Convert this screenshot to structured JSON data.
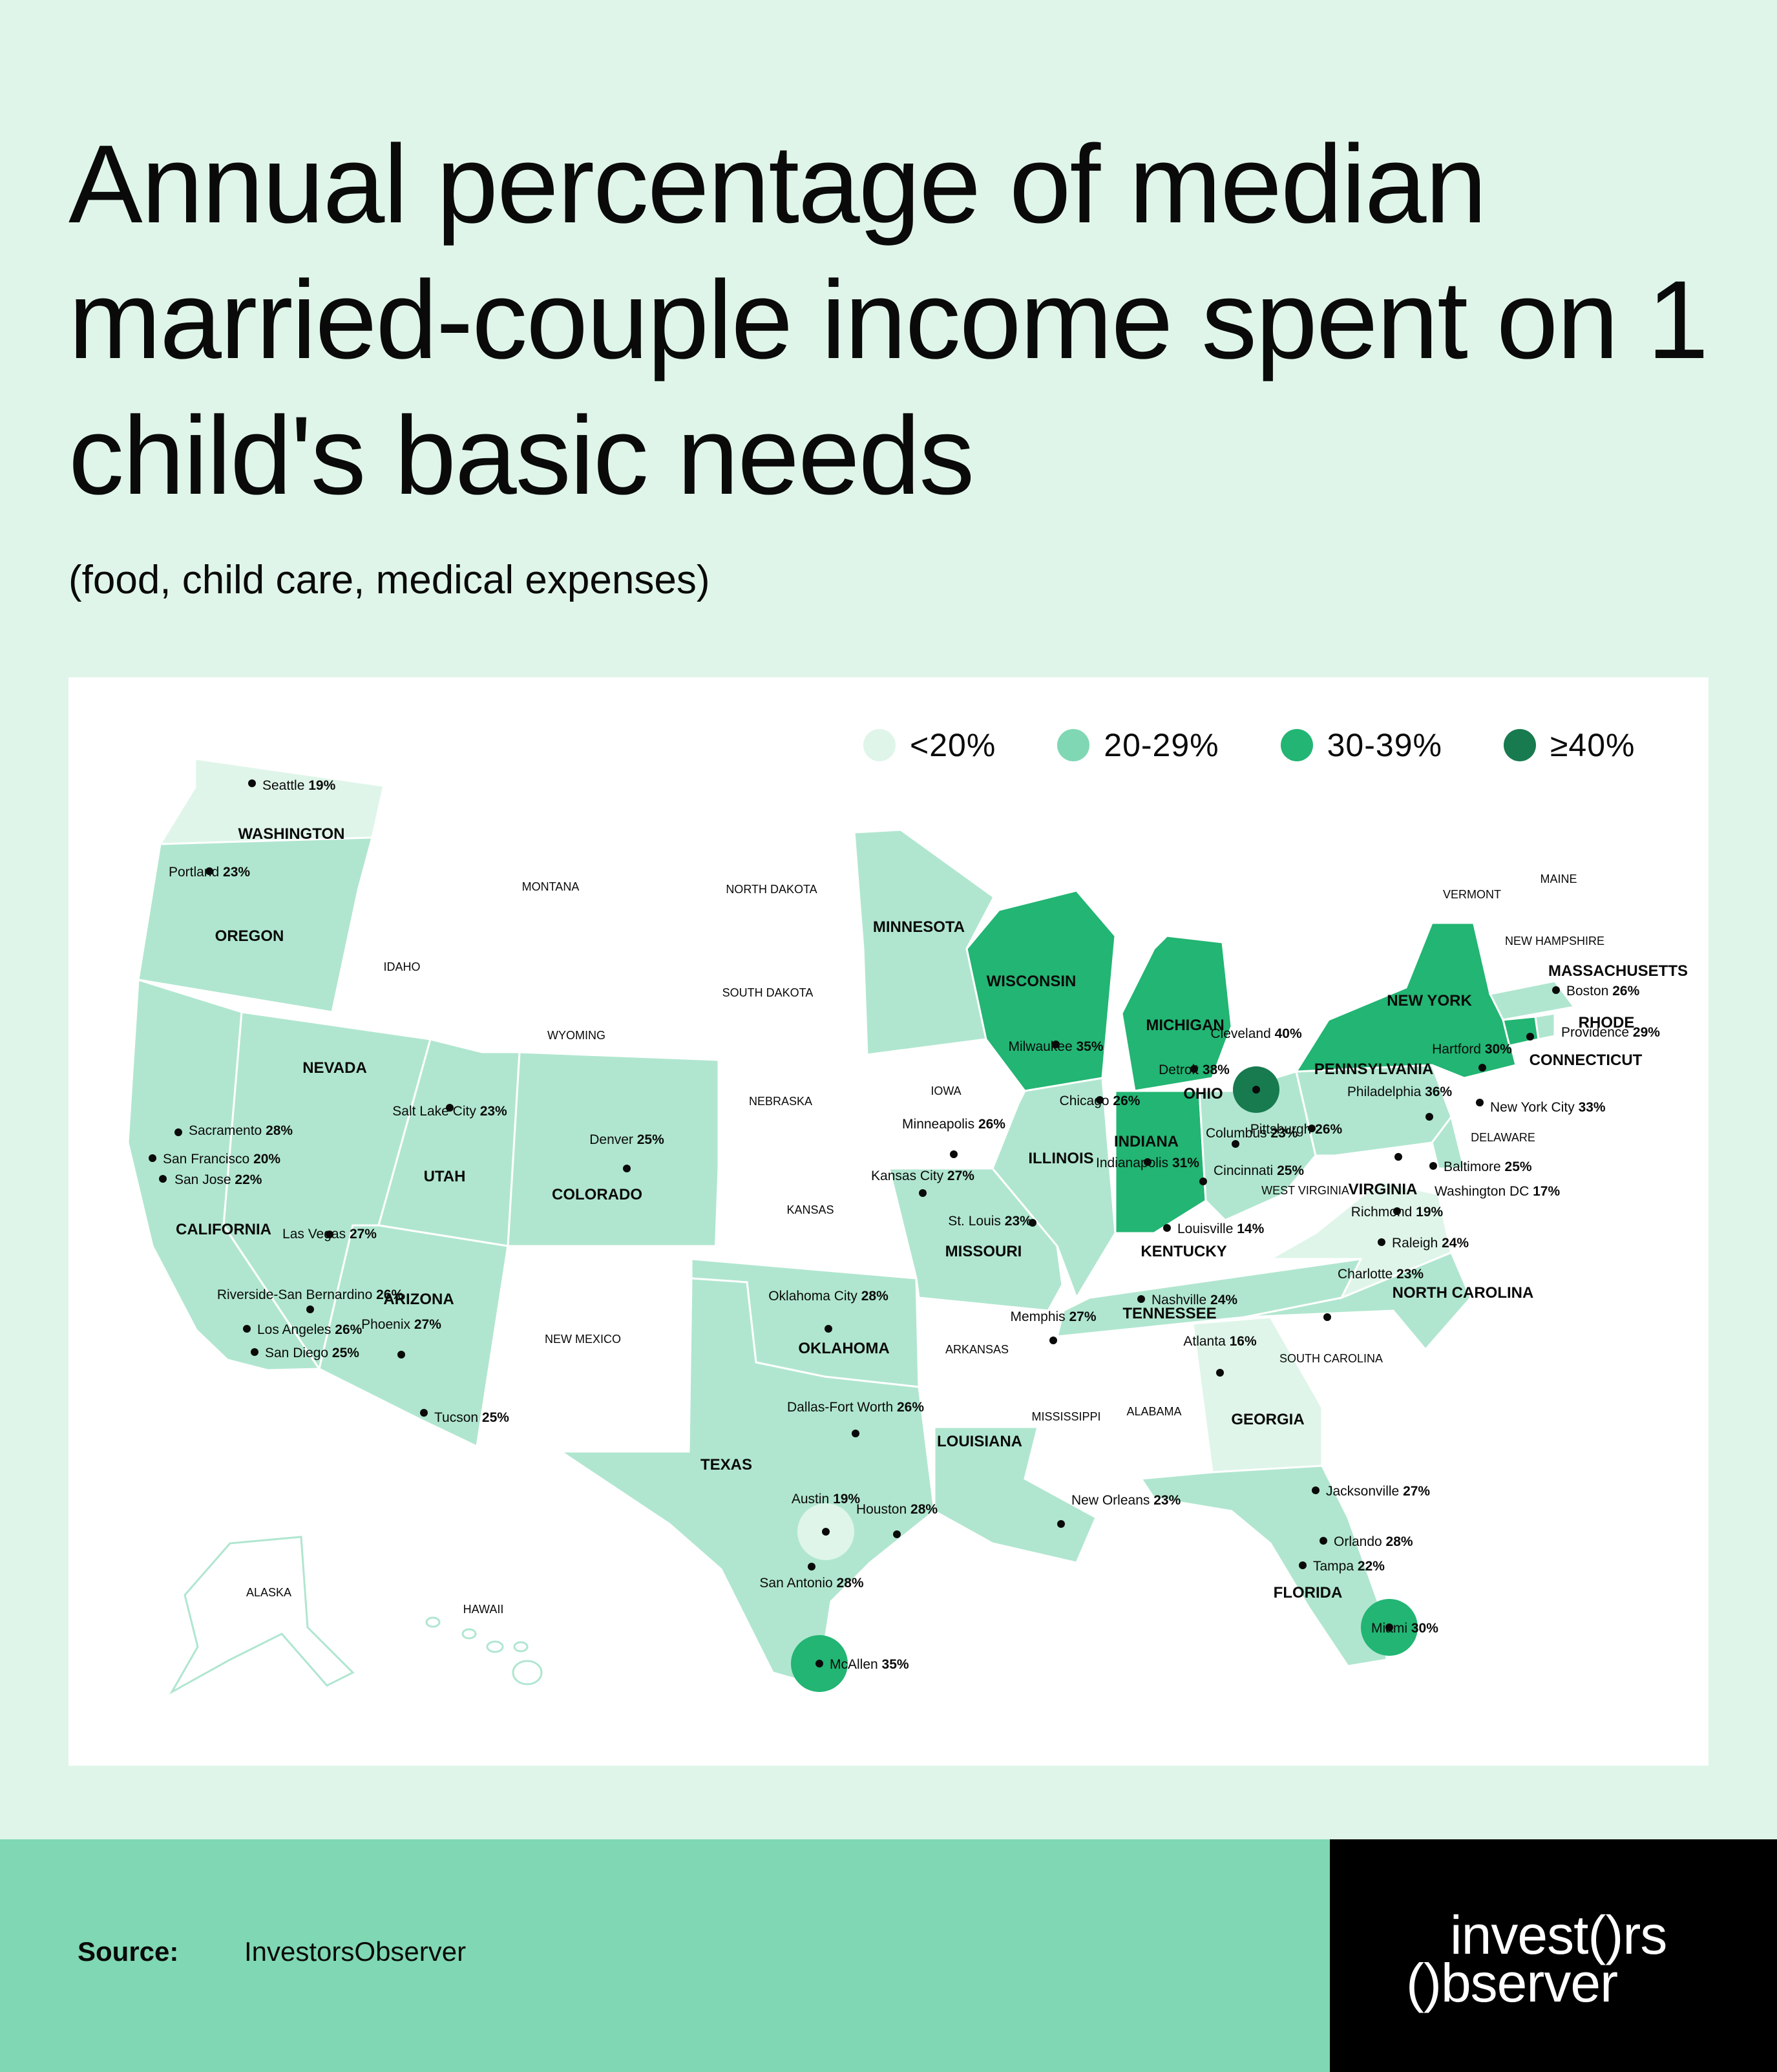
{
  "header": {
    "title": "Annual percentage of median married-couple income spent on 1 child's basic needs",
    "subtitle": "(food, child care, medical expenses)"
  },
  "colors": {
    "page_bg": "#dff5e9",
    "low": "#dff5e9",
    "mid": "#b0e6cf",
    "high": "#22b573",
    "top": "#187a4f",
    "no_data": "#ffffff",
    "footer": "#7fd8b3",
    "logo_bg": "#000000"
  },
  "legend": [
    {
      "label": "<20%",
      "color": "#dff5e9"
    },
    {
      "label": "20-29%",
      "color": "#7fd8b3"
    },
    {
      "label": "30-39%",
      "color": "#22b573"
    },
    {
      "label": "≥40%",
      "color": "#187a4f"
    }
  ],
  "states": {
    "wa": "WASHINGTON",
    "or": "OREGON",
    "ca": "CALIFORNIA",
    "nv": "NEVADA",
    "id": "IDAHO",
    "mt": "MONTANA",
    "wy": "WYOMING",
    "ut": "UTAH",
    "az": "ARIZONA",
    "co": "COLORADO",
    "nm": "NEW MEXICO",
    "nd": "NORTH DAKOTA",
    "sd": "SOUTH DAKOTA",
    "ne": "NEBRASKA",
    "ks": "KANSAS",
    "ok": "OKLAHOMA",
    "tx": "TEXAS",
    "mn": "MINNESOTA",
    "ia": "IOWA",
    "mo": "MISSOURI",
    "ar": "ARKANSAS",
    "la": "LOUISIANA",
    "wi": "WISCONSIN",
    "il": "ILLINOIS",
    "mi": "MICHIGAN",
    "in": "INDIANA",
    "oh": "OHIO",
    "ky": "KENTUCKY",
    "tn": "TENNESSEE",
    "ms": "MISSISSIPPI",
    "al": "ALABAMA",
    "ga": "GEORGIA",
    "fl": "FLORIDA",
    "sc": "SOUTH CAROLINA",
    "nc": "NORTH CAROLINA",
    "va": "VIRGINIA",
    "wv": "WEST VIRGINIA",
    "pa": "PENNSYLVANIA",
    "ny": "NEW YORK",
    "vt": "VERMONT",
    "nh": "NEW HAMPSHIRE",
    "me": "MAINE",
    "ma": "MASSACHUSETTS",
    "ri": "RHODE",
    "ct": "CONNECTICUT",
    "de": "DELAWARE",
    "ak": "ALASKA",
    "hi": "HAWAII"
  },
  "cities": [
    {
      "name": "Seattle",
      "value": "19%"
    },
    {
      "name": "Portland",
      "value": "23%"
    },
    {
      "name": "Sacramento",
      "value": "28%"
    },
    {
      "name": "San Francisco",
      "value": "20%"
    },
    {
      "name": "San Jose",
      "value": "22%"
    },
    {
      "name": "Los Angeles",
      "value": "26%"
    },
    {
      "name": "San Diego",
      "value": "25%"
    },
    {
      "name": "Riverside-San Bernardino",
      "value": "26%"
    },
    {
      "name": "Las Vegas",
      "value": "27%"
    },
    {
      "name": "Salt Lake City",
      "value": "23%"
    },
    {
      "name": "Phoenix",
      "value": "27%"
    },
    {
      "name": "Tucson",
      "value": "25%"
    },
    {
      "name": "Denver",
      "value": "25%"
    },
    {
      "name": "Minneapolis",
      "value": "26%"
    },
    {
      "name": "Milwaukee",
      "value": "35%"
    },
    {
      "name": "Chicago",
      "value": "26%"
    },
    {
      "name": "Detroit",
      "value": "38%"
    },
    {
      "name": "Cleveland",
      "value": "40%"
    },
    {
      "name": "Columbus",
      "value": "23%"
    },
    {
      "name": "Cincinnati",
      "value": "25%"
    },
    {
      "name": "Indianapolis",
      "value": "31%"
    },
    {
      "name": "Louisville",
      "value": "14%"
    },
    {
      "name": "Kansas City",
      "value": "27%"
    },
    {
      "name": "St. Louis",
      "value": "23%"
    },
    {
      "name": "Oklahoma City",
      "value": "28%"
    },
    {
      "name": "Memphis",
      "value": "27%"
    },
    {
      "name": "Nashville",
      "value": "24%"
    },
    {
      "name": "Pittsburgh",
      "value": "26%"
    },
    {
      "name": "Philadelphia",
      "value": "36%"
    },
    {
      "name": "New York City",
      "value": "33%"
    },
    {
      "name": "Hartford",
      "value": "30%"
    },
    {
      "name": "Providence",
      "value": "29%"
    },
    {
      "name": "Boston",
      "value": "26%"
    },
    {
      "name": "Baltimore",
      "value": "25%"
    },
    {
      "name": "Washington DC",
      "value": "17%"
    },
    {
      "name": "Richmond",
      "value": "19%"
    },
    {
      "name": "Raleigh",
      "value": "24%"
    },
    {
      "name": "Charlotte",
      "value": "23%"
    },
    {
      "name": "Atlanta",
      "value": "16%"
    },
    {
      "name": "Dallas-Fort Worth",
      "value": "26%"
    },
    {
      "name": "Austin",
      "value": "19%"
    },
    {
      "name": "Houston",
      "value": "28%"
    },
    {
      "name": "San Antonio",
      "value": "28%"
    },
    {
      "name": "McAllen",
      "value": "35%"
    },
    {
      "name": "New Orleans",
      "value": "23%"
    },
    {
      "name": "Jacksonville",
      "value": "27%"
    },
    {
      "name": "Orlando",
      "value": "28%"
    },
    {
      "name": "Tampa",
      "value": "22%"
    },
    {
      "name": "Miami",
      "value": "30%"
    }
  ],
  "footer": {
    "source_label": "Source:",
    "source_value": "InvestorsObserver",
    "logo_line1": "invest()rs",
    "logo_line2": "()bserver"
  }
}
